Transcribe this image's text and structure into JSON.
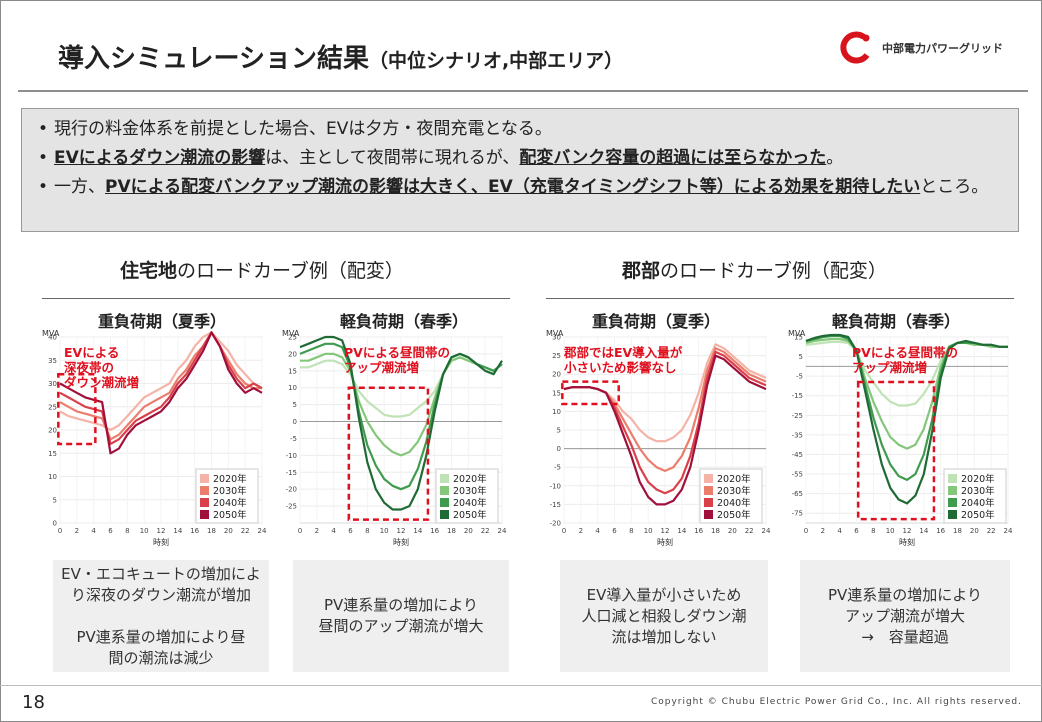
{
  "title": "導入シミュレーション結果",
  "title_sub": "（中位シナリオ,中部エリア）",
  "logo_text": "中部電力パワーグリッド",
  "bullets": [
    [
      {
        "t": "現行の料金体系を前提とした場合、EVは夕方・夜間充電となる。"
      }
    ],
    [
      {
        "t": "EVによるダウン潮流の影響",
        "s": "bu"
      },
      {
        "t": "は、主として夜間帯に現れるが、"
      },
      {
        "t": "配変バンク容量の超過には至らなかった",
        "s": "bu"
      },
      {
        "t": "。"
      }
    ],
    [
      {
        "t": "一方、"
      },
      {
        "t": "PVによる配変バンクアップ潮流の影響は大きく、EV（充電タイミングシフト等）による効果を期待したい",
        "s": "bu"
      },
      {
        "t": "ところ。"
      }
    ]
  ],
  "sections": [
    {
      "strong": "住宅地",
      "rest": "のロードカーブ例（配変）"
    },
    {
      "strong": "郡部",
      "rest": "のロードカーブ例（配変）"
    }
  ],
  "panel_titles": [
    "重負荷期（夏季）",
    "軽負荷期（春季）",
    "重負荷期（夏季）",
    "軽負荷期（春季）"
  ],
  "colors": {
    "red": [
      "#f4b3a6",
      "#ea7d6c",
      "#d9404a",
      "#a0103b"
    ],
    "green": [
      "#bfe3b4",
      "#84c77a",
      "#3f9b4e",
      "#1f6b35"
    ],
    "annotation": "#e0101e",
    "note_bg": "#efefef"
  },
  "chart_data": [
    {
      "type": "line",
      "ylabel": "MVA",
      "xlabel": "時刻",
      "ylim": [
        0,
        40
      ],
      "yticks": [
        0,
        5,
        10,
        15,
        20,
        25,
        30,
        35,
        40
      ],
      "xticks": [
        0,
        2,
        4,
        6,
        8,
        10,
        12,
        14,
        16,
        18,
        20,
        22,
        24
      ],
      "x": [
        0,
        1,
        2,
        3,
        4,
        5,
        6,
        7,
        8,
        9,
        10,
        11,
        12,
        13,
        14,
        15,
        16,
        17,
        18,
        19,
        20,
        21,
        22,
        23,
        24
      ],
      "series": [
        {
          "name": "2020年",
          "values": [
            24,
            23,
            22.5,
            22,
            21.5,
            21,
            20,
            21,
            23,
            25,
            27,
            28,
            29,
            30,
            33,
            35,
            38,
            40,
            41,
            39,
            37,
            34,
            32,
            30,
            29
          ]
        },
        {
          "name": "2030年",
          "values": [
            26,
            25,
            24,
            23.5,
            23,
            22.5,
            18,
            19,
            21,
            23,
            25,
            26,
            27,
            28,
            31,
            33,
            36,
            38,
            41,
            38,
            35,
            32,
            30,
            29,
            29
          ]
        },
        {
          "name": "2040年",
          "values": [
            28,
            27,
            26,
            25,
            24.5,
            24,
            17,
            18,
            20,
            22,
            23,
            24,
            25,
            27,
            30,
            32,
            35,
            38,
            41,
            38,
            34,
            31,
            29,
            30,
            29
          ]
        },
        {
          "name": "2050年",
          "values": [
            30,
            29,
            28,
            27,
            26.5,
            26,
            15,
            16,
            19,
            21,
            22,
            23,
            24,
            26,
            29,
            31,
            34,
            37,
            41,
            38,
            33,
            30,
            28,
            29,
            28
          ]
        }
      ],
      "annotation": "EVによる\n深夜帯の\nダウン潮流増",
      "dash_box": {
        "x0": -0.2,
        "x1": 4.2,
        "y0": 32,
        "y1": 17
      }
    },
    {
      "type": "line",
      "ylabel": "MVA",
      "xlabel": "時刻",
      "ylim": [
        -30,
        25
      ],
      "yticks": [
        -25,
        -20,
        -15,
        -10,
        -5,
        0,
        5,
        10,
        15,
        20,
        25
      ],
      "xticks": [
        0,
        2,
        4,
        6,
        8,
        10,
        12,
        14,
        16,
        18,
        20,
        22,
        24
      ],
      "x": [
        0,
        1,
        2,
        3,
        4,
        5,
        6,
        7,
        8,
        9,
        10,
        11,
        12,
        13,
        14,
        15,
        16,
        17,
        18,
        19,
        20,
        21,
        22,
        23,
        24
      ],
      "series": [
        {
          "name": "2020年",
          "values": [
            16,
            16,
            17,
            18,
            18,
            17,
            14,
            9,
            6,
            4,
            2,
            1.5,
            1.5,
            2,
            4,
            6,
            9,
            14,
            18,
            19,
            18,
            17,
            16,
            15,
            17
          ]
        },
        {
          "name": "2030年",
          "values": [
            18,
            18,
            19,
            20,
            20,
            19,
            15,
            6,
            0,
            -4,
            -7,
            -9,
            -10,
            -9,
            -6,
            -1,
            7,
            14,
            18,
            19,
            18,
            17,
            16,
            15,
            17
          ]
        },
        {
          "name": "2040年",
          "values": [
            20,
            21,
            22,
            23,
            23,
            22,
            16,
            3,
            -7,
            -13,
            -17,
            -19,
            -20,
            -19,
            -14,
            -6,
            5,
            14,
            19,
            20,
            19,
            17,
            16,
            15,
            17
          ]
        },
        {
          "name": "2050年",
          "values": [
            22,
            23,
            24,
            25,
            25,
            24,
            17,
            1,
            -12,
            -20,
            -24,
            -26,
            -26,
            -25,
            -20,
            -10,
            3,
            14,
            19,
            20,
            19,
            17,
            15,
            14,
            18
          ]
        }
      ],
      "annotation": "PVによる昼間帯の\nアップ潮流増",
      "dash_box": {
        "x0": 5.8,
        "x1": 15.2,
        "y0": 10,
        "y1": -29
      }
    },
    {
      "type": "line",
      "ylabel": "MVA",
      "xlabel": "時刻",
      "ylim": [
        -20,
        30
      ],
      "yticks": [
        -20,
        -15,
        -10,
        -5,
        0,
        5,
        10,
        15,
        20,
        25,
        30
      ],
      "xticks": [
        0,
        2,
        4,
        6,
        8,
        10,
        12,
        14,
        16,
        18,
        20,
        22,
        24
      ],
      "x": [
        0,
        1,
        2,
        3,
        4,
        5,
        6,
        7,
        8,
        9,
        10,
        11,
        12,
        13,
        14,
        15,
        16,
        17,
        18,
        19,
        20,
        21,
        22,
        23,
        24
      ],
      "series": [
        {
          "name": "2020年",
          "values": [
            16,
            16.5,
            16.5,
            16.5,
            16,
            15,
            13,
            10,
            8,
            5,
            3,
            2,
            2,
            3,
            5,
            9,
            15,
            23,
            28,
            27,
            25,
            23,
            21,
            20,
            19
          ]
        },
        {
          "name": "2030年",
          "values": [
            16,
            16.5,
            16.5,
            16.5,
            16,
            15,
            12,
            8,
            4,
            0,
            -3,
            -5,
            -6,
            -5,
            -2,
            3,
            11,
            21,
            27,
            26,
            24,
            22,
            20,
            19,
            18
          ]
        },
        {
          "name": "2040年",
          "values": [
            16,
            16.5,
            16.5,
            16.5,
            16,
            15,
            11,
            6,
            1,
            -5,
            -9,
            -11,
            -12,
            -11,
            -8,
            -2,
            7,
            19,
            26,
            25,
            23,
            21,
            19,
            18,
            17
          ]
        },
        {
          "name": "2050年",
          "values": [
            16,
            16.5,
            16.5,
            16.5,
            16,
            15,
            10,
            4,
            -2,
            -9,
            -13,
            -15,
            -15,
            -14,
            -11,
            -5,
            5,
            17,
            25,
            24,
            22,
            20,
            18,
            17,
            16
          ]
        }
      ],
      "annotation": "郡部ではEV導入量が\n小さいため影響なし",
      "dash_box": {
        "x0": -0.2,
        "x1": 6.5,
        "y0": 18,
        "y1": 12
      }
    },
    {
      "type": "line",
      "ylabel": "MVA",
      "xlabel": "時刻",
      "ylim": [
        -80,
        15
      ],
      "yticks": [
        -75,
        -65,
        -55,
        -45,
        -35,
        -25,
        -15,
        -5,
        5,
        15
      ],
      "xticks": [
        0,
        2,
        4,
        6,
        8,
        10,
        12,
        14,
        16,
        18,
        20,
        22,
        24
      ],
      "x": [
        0,
        1,
        2,
        3,
        4,
        5,
        6,
        7,
        8,
        9,
        10,
        11,
        12,
        13,
        14,
        15,
        16,
        17,
        18,
        19,
        20,
        21,
        22,
        23,
        24
      ],
      "series": [
        {
          "name": "2020年",
          "values": [
            11,
            11.5,
            12,
            12.5,
            12.5,
            12,
            8,
            -2,
            -8,
            -14,
            -18,
            -20,
            -20,
            -19,
            -14,
            -7,
            3,
            10,
            12,
            12,
            11,
            11,
            10,
            10,
            10
          ]
        },
        {
          "name": "2030年",
          "values": [
            12,
            13,
            13.5,
            14,
            14,
            13,
            8,
            -6,
            -18,
            -28,
            -36,
            -40,
            -42,
            -40,
            -32,
            -18,
            0,
            10,
            12,
            12,
            11,
            11,
            10,
            10,
            10
          ]
        },
        {
          "name": "2040年",
          "values": [
            13,
            14,
            15,
            15.5,
            15.5,
            14,
            8,
            -9,
            -26,
            -40,
            -50,
            -56,
            -58,
            -55,
            -45,
            -27,
            -3,
            10,
            12,
            12,
            12,
            11,
            11,
            10,
            10
          ]
        },
        {
          "name": "2050年",
          "values": [
            13,
            14.5,
            15.5,
            16,
            16,
            15,
            8,
            -12,
            -32,
            -50,
            -62,
            -68,
            -70,
            -66,
            -55,
            -33,
            -6,
            9,
            12,
            13,
            12,
            11,
            11,
            10,
            10
          ]
        }
      ],
      "annotation": "PVによる昼間帯の\nアップ潮流増",
      "dash_box": {
        "x0": 6.2,
        "x1": 15.2,
        "y0": -8,
        "y1": -78
      }
    }
  ],
  "notes": [
    "EV・エコキュートの増加によ\nり深夜のダウン潮流が増加\n\nPV連系量の増加により昼\n間の潮流は減少",
    "PV連系量の増加により\n昼間のアップ潮流が増大",
    "EV導入量が小さいため\n人口減と相殺しダウン潮\n流は増加しない",
    "PV連系量の増加により\nアップ潮流が増大\n→　容量超過"
  ],
  "page_number": "18",
  "copyright": "Copyright © Chubu Electric Power Grid Co., Inc. All rights reserved."
}
